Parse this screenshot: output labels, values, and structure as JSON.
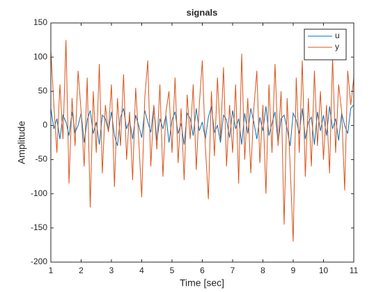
{
  "chart_data": {
    "type": "line",
    "title": "signals",
    "xlabel": "Time [sec]",
    "ylabel": "Amplitude",
    "x": [
      1,
      1.1,
      1.2,
      1.3,
      1.4,
      1.5,
      1.6,
      1.7,
      1.8,
      1.9,
      2,
      2.1,
      2.2,
      2.3,
      2.4,
      2.5,
      2.6,
      2.7,
      2.8,
      2.9,
      3,
      3.1,
      3.2,
      3.3,
      3.4,
      3.5,
      3.6,
      3.7,
      3.8,
      3.9,
      4,
      4.1,
      4.2,
      4.3,
      4.4,
      4.5,
      4.6,
      4.7,
      4.8,
      4.9,
      5,
      5.1,
      5.2,
      5.3,
      5.4,
      5.5,
      5.6,
      5.7,
      5.8,
      5.9,
      6,
      6.1,
      6.2,
      6.3,
      6.4,
      6.5,
      6.6,
      6.7,
      6.8,
      6.9,
      7,
      7.1,
      7.2,
      7.3,
      7.4,
      7.5,
      7.6,
      7.7,
      7.8,
      7.9,
      8,
      8.1,
      8.2,
      8.3,
      8.4,
      8.5,
      8.6,
      8.7,
      8.8,
      8.9,
      9,
      9.1,
      9.2,
      9.3,
      9.4,
      9.5,
      9.6,
      9.7,
      9.8,
      9.9,
      10,
      10.1,
      10.2,
      10.3,
      10.4,
      10.5,
      10.6,
      10.7,
      10.8,
      10.9,
      11
    ],
    "series": [
      {
        "name": "u",
        "color": "#0072bd",
        "values": [
          25,
          -5,
          10,
          -20,
          15,
          5,
          -15,
          20,
          -10,
          0,
          18,
          -25,
          8,
          22,
          -12,
          5,
          -28,
          15,
          10,
          -8,
          20,
          -15,
          -30,
          12,
          25,
          -5,
          8,
          -20,
          15,
          0,
          -18,
          22,
          5,
          -10,
          28,
          -22,
          10,
          -5,
          15,
          -25,
          8,
          20,
          -12,
          3,
          -28,
          18,
          10,
          -15,
          25,
          -8,
          5,
          -20,
          12,
          28,
          -10,
          0,
          -25,
          15,
          8,
          -18,
          22,
          -5,
          10,
          -28,
          18,
          -12,
          25,
          5,
          -20,
          12,
          -8,
          28,
          -15,
          3,
          20,
          -25,
          10,
          15,
          -5,
          -30,
          18,
          8,
          -12,
          25,
          -20,
          5,
          12,
          -28,
          20,
          -8,
          15,
          -15,
          28,
          -5,
          10,
          -22,
          18,
          0,
          -12,
          25,
          30
        ]
      },
      {
        "name": "y",
        "color": "#d95319",
        "values": [
          110,
          30,
          -40,
          60,
          -20,
          125,
          -85,
          40,
          -30,
          80,
          20,
          -60,
          70,
          -120,
          50,
          -40,
          90,
          -70,
          30,
          -10,
          60,
          -90,
          40,
          -30,
          75,
          -50,
          20,
          -80,
          55,
          -20,
          -105,
          40,
          95,
          -60,
          30,
          -35,
          60,
          -75,
          20,
          50,
          -40,
          70,
          -55,
          25,
          -80,
          45,
          -20,
          60,
          -65,
          30,
          95,
          -30,
          -108,
          50,
          -45,
          70,
          -20,
          85,
          -60,
          30,
          -40,
          60,
          -85,
          105,
          -50,
          40,
          -70,
          25,
          80,
          -55,
          30,
          -100,
          60,
          -40,
          90,
          -30,
          50,
          -145,
          40,
          -60,
          -170,
          70,
          -40,
          95,
          -75,
          40,
          -60,
          80,
          -30,
          50,
          -50,
          30,
          -70,
          100,
          -40,
          60,
          20,
          -95,
          80,
          30,
          70
        ]
      }
    ],
    "xlim": [
      1,
      11
    ],
    "xticks": [
      1,
      2,
      3,
      4,
      5,
      6,
      7,
      8,
      9,
      10,
      11
    ],
    "ylim": [
      -200,
      150
    ],
    "yticks": [
      -200,
      -150,
      -100,
      -50,
      0,
      50,
      100,
      150
    ],
    "legend": "upper right"
  }
}
